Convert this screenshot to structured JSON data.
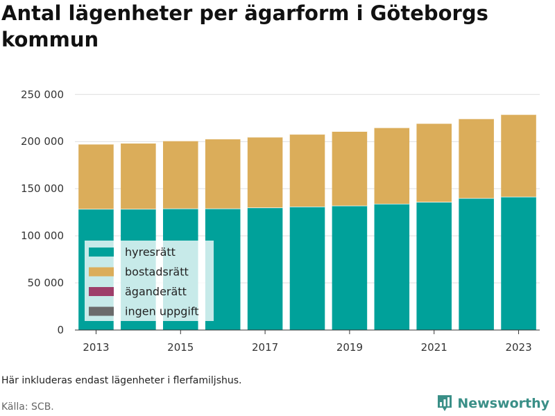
{
  "title": "Antal lägenheter per ägarform i Göteborgs kommun",
  "note": "Här inkluderas endast lägenheter i flerfamiljshus.",
  "source": "Källa: SCB.",
  "brand": {
    "name": "Newsworthy",
    "icon": "newsworthy-logo-icon",
    "color": "#3a8f87"
  },
  "chart_data": {
    "type": "bar",
    "stacked": true,
    "categories": [
      "2013",
      "2014",
      "2015",
      "2016",
      "2017",
      "2018",
      "2019",
      "2020",
      "2021",
      "2022",
      "2023"
    ],
    "x_tick_labels": [
      "2013",
      "2015",
      "2017",
      "2019",
      "2021",
      "2023"
    ],
    "y_ticks": [
      0,
      50000,
      100000,
      150000,
      200000,
      250000
    ],
    "y_tick_labels": [
      "0",
      "50 000",
      "100 000",
      "150 000",
      "200 000",
      "250 000"
    ],
    "ylim": [
      0,
      262000
    ],
    "grid": true,
    "legend_position": "bottom-left",
    "series": [
      {
        "name": "hyresrätt",
        "color": "#00a19a",
        "values": [
          128500,
          128500,
          129000,
          129000,
          130000,
          131000,
          132000,
          134000,
          136000,
          140000,
          141500
        ]
      },
      {
        "name": "bostadsrätt",
        "color": "#dbad5a",
        "values": [
          69000,
          70000,
          72000,
          74000,
          75000,
          77000,
          79000,
          81000,
          83500,
          84500,
          87500
        ]
      },
      {
        "name": "äganderätt",
        "color": "#9e3f6a",
        "values": [
          0,
          0,
          0,
          0,
          0,
          0,
          0,
          0,
          0,
          0,
          0
        ]
      },
      {
        "name": "ingen uppgift",
        "color": "#6b6b6b",
        "values": [
          0,
          0,
          0,
          0,
          0,
          0,
          0,
          0,
          0,
          0,
          0
        ]
      }
    ]
  }
}
